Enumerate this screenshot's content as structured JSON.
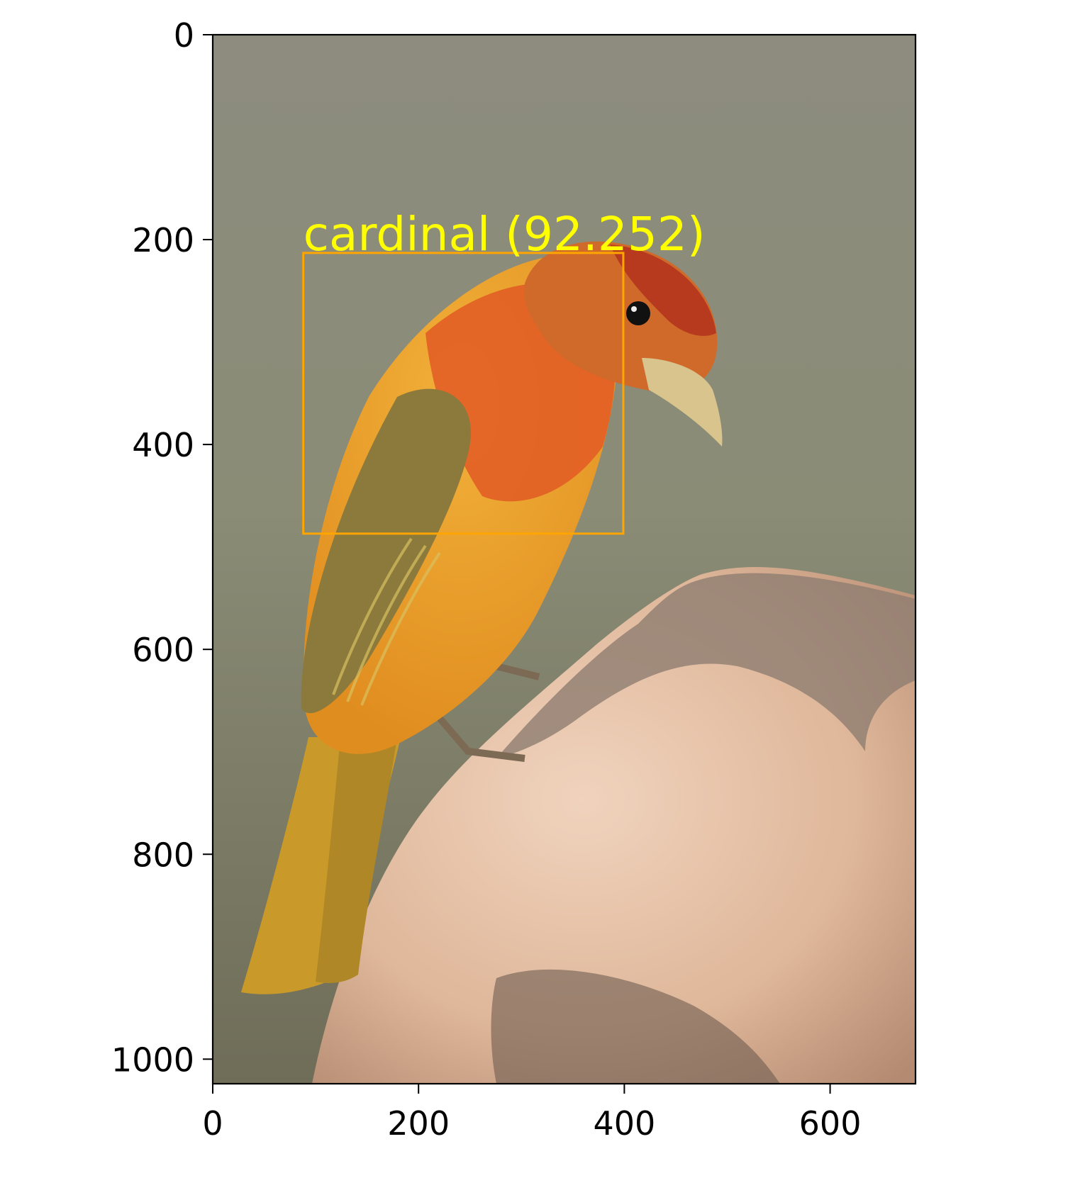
{
  "figure": {
    "image_extent": {
      "x": [
        0,
        683
      ],
      "y": [
        1024,
        0
      ]
    },
    "x_ticks": [
      0,
      200,
      400,
      600
    ],
    "y_ticks": [
      0,
      200,
      400,
      600,
      800,
      1000
    ],
    "photo_subject": "bird perched on rock"
  },
  "detection": {
    "label": "cardinal (92.252)",
    "box": {
      "x_min": 88,
      "y_min": 213,
      "x_max": 399,
      "y_max": 487
    },
    "box_color": "#ffa500",
    "label_color": "#ffff00"
  }
}
